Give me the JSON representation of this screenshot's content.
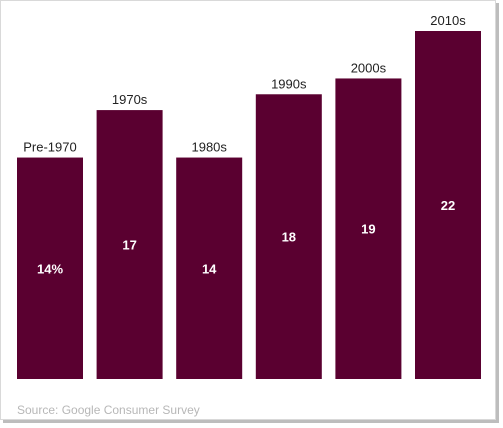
{
  "chart_data": {
    "type": "bar",
    "title": "",
    "xlabel": "",
    "ylabel": "",
    "categories": [
      "Pre-1970",
      "1970s",
      "1980s",
      "1990s",
      "2000s",
      "2010s"
    ],
    "values": [
      14,
      17,
      14,
      18,
      19,
      22
    ],
    "data_labels": [
      "14%",
      "17",
      "14",
      "18",
      "19",
      "22"
    ],
    "ylim": [
      0,
      22
    ],
    "grid": false,
    "legend": "none",
    "bar_color": "#5a0030",
    "label_color": "#ffffff",
    "category_label_color": "#222222"
  },
  "footer": {
    "source": "Source: Google Consumer Survey"
  }
}
